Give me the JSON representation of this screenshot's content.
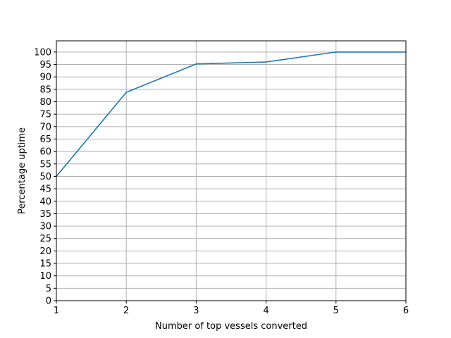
{
  "chart_data": {
    "type": "line",
    "title": "",
    "xlabel": "Number of top vessels converted",
    "ylabel": "Percentage uptime",
    "x": [
      1,
      2,
      3,
      4,
      5,
      6
    ],
    "series": [
      {
        "values": [
          50,
          83.8,
          95.2,
          96,
          100,
          100
        ],
        "color": "#1f77b4"
      }
    ],
    "xlim": [
      1,
      6
    ],
    "ylim": [
      0,
      104.5
    ],
    "xticks": [
      1,
      2,
      3,
      4,
      5,
      6
    ],
    "yticks": [
      0,
      5,
      10,
      15,
      20,
      25,
      30,
      35,
      40,
      45,
      50,
      55,
      60,
      65,
      70,
      75,
      80,
      85,
      90,
      95,
      100
    ],
    "grid": true,
    "legend": "none"
  }
}
